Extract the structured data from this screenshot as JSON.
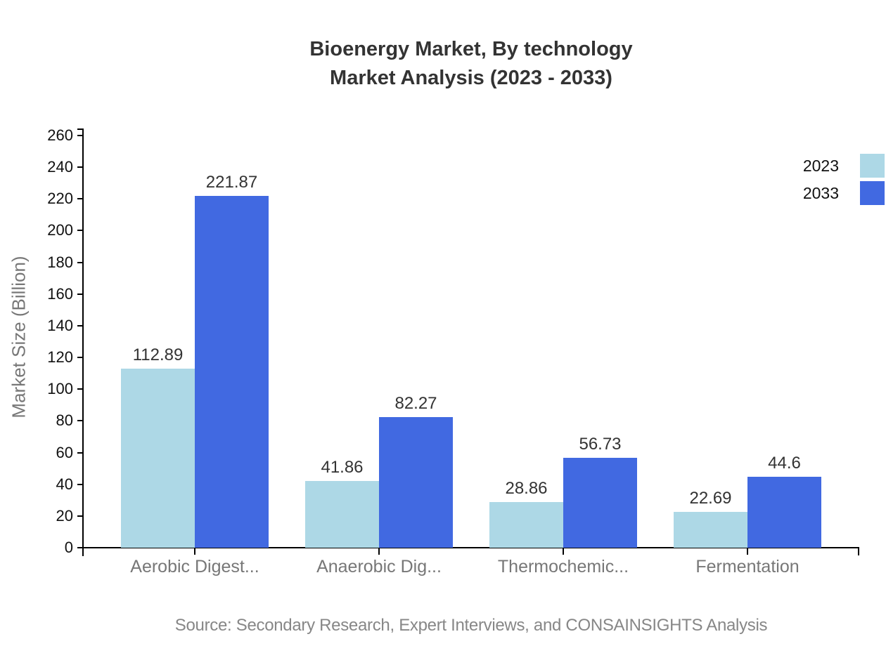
{
  "title": {
    "line1": "Bioenergy Market, By technology",
    "line2": "Market Analysis (2023 - 2033)"
  },
  "source": "Source: Secondary Research, Expert Interviews, and CONSAINSIGHTS Analysis",
  "chart_data": {
    "type": "bar",
    "title": "Bioenergy Market, By technology",
    "subtitle": "Market Analysis (2023 - 2033)",
    "categories": [
      "Aerobic Digest...",
      "Anaerobic Dig...",
      "Thermochemic...",
      "Fermentation"
    ],
    "series": [
      {
        "name": "2023",
        "color": "#ADD8E6",
        "values": [
          112.89,
          41.86,
          28.86,
          22.69
        ]
      },
      {
        "name": "2033",
        "color": "#4169E1",
        "values": [
          221.87,
          82.27,
          56.73,
          44.6
        ]
      }
    ],
    "xlabel": "",
    "ylabel": "Market Size (Billion)",
    "ylim": [
      0,
      260
    ],
    "ytick_step": 20,
    "grid": false,
    "legend_position": "top-right",
    "value_labels": true
  }
}
